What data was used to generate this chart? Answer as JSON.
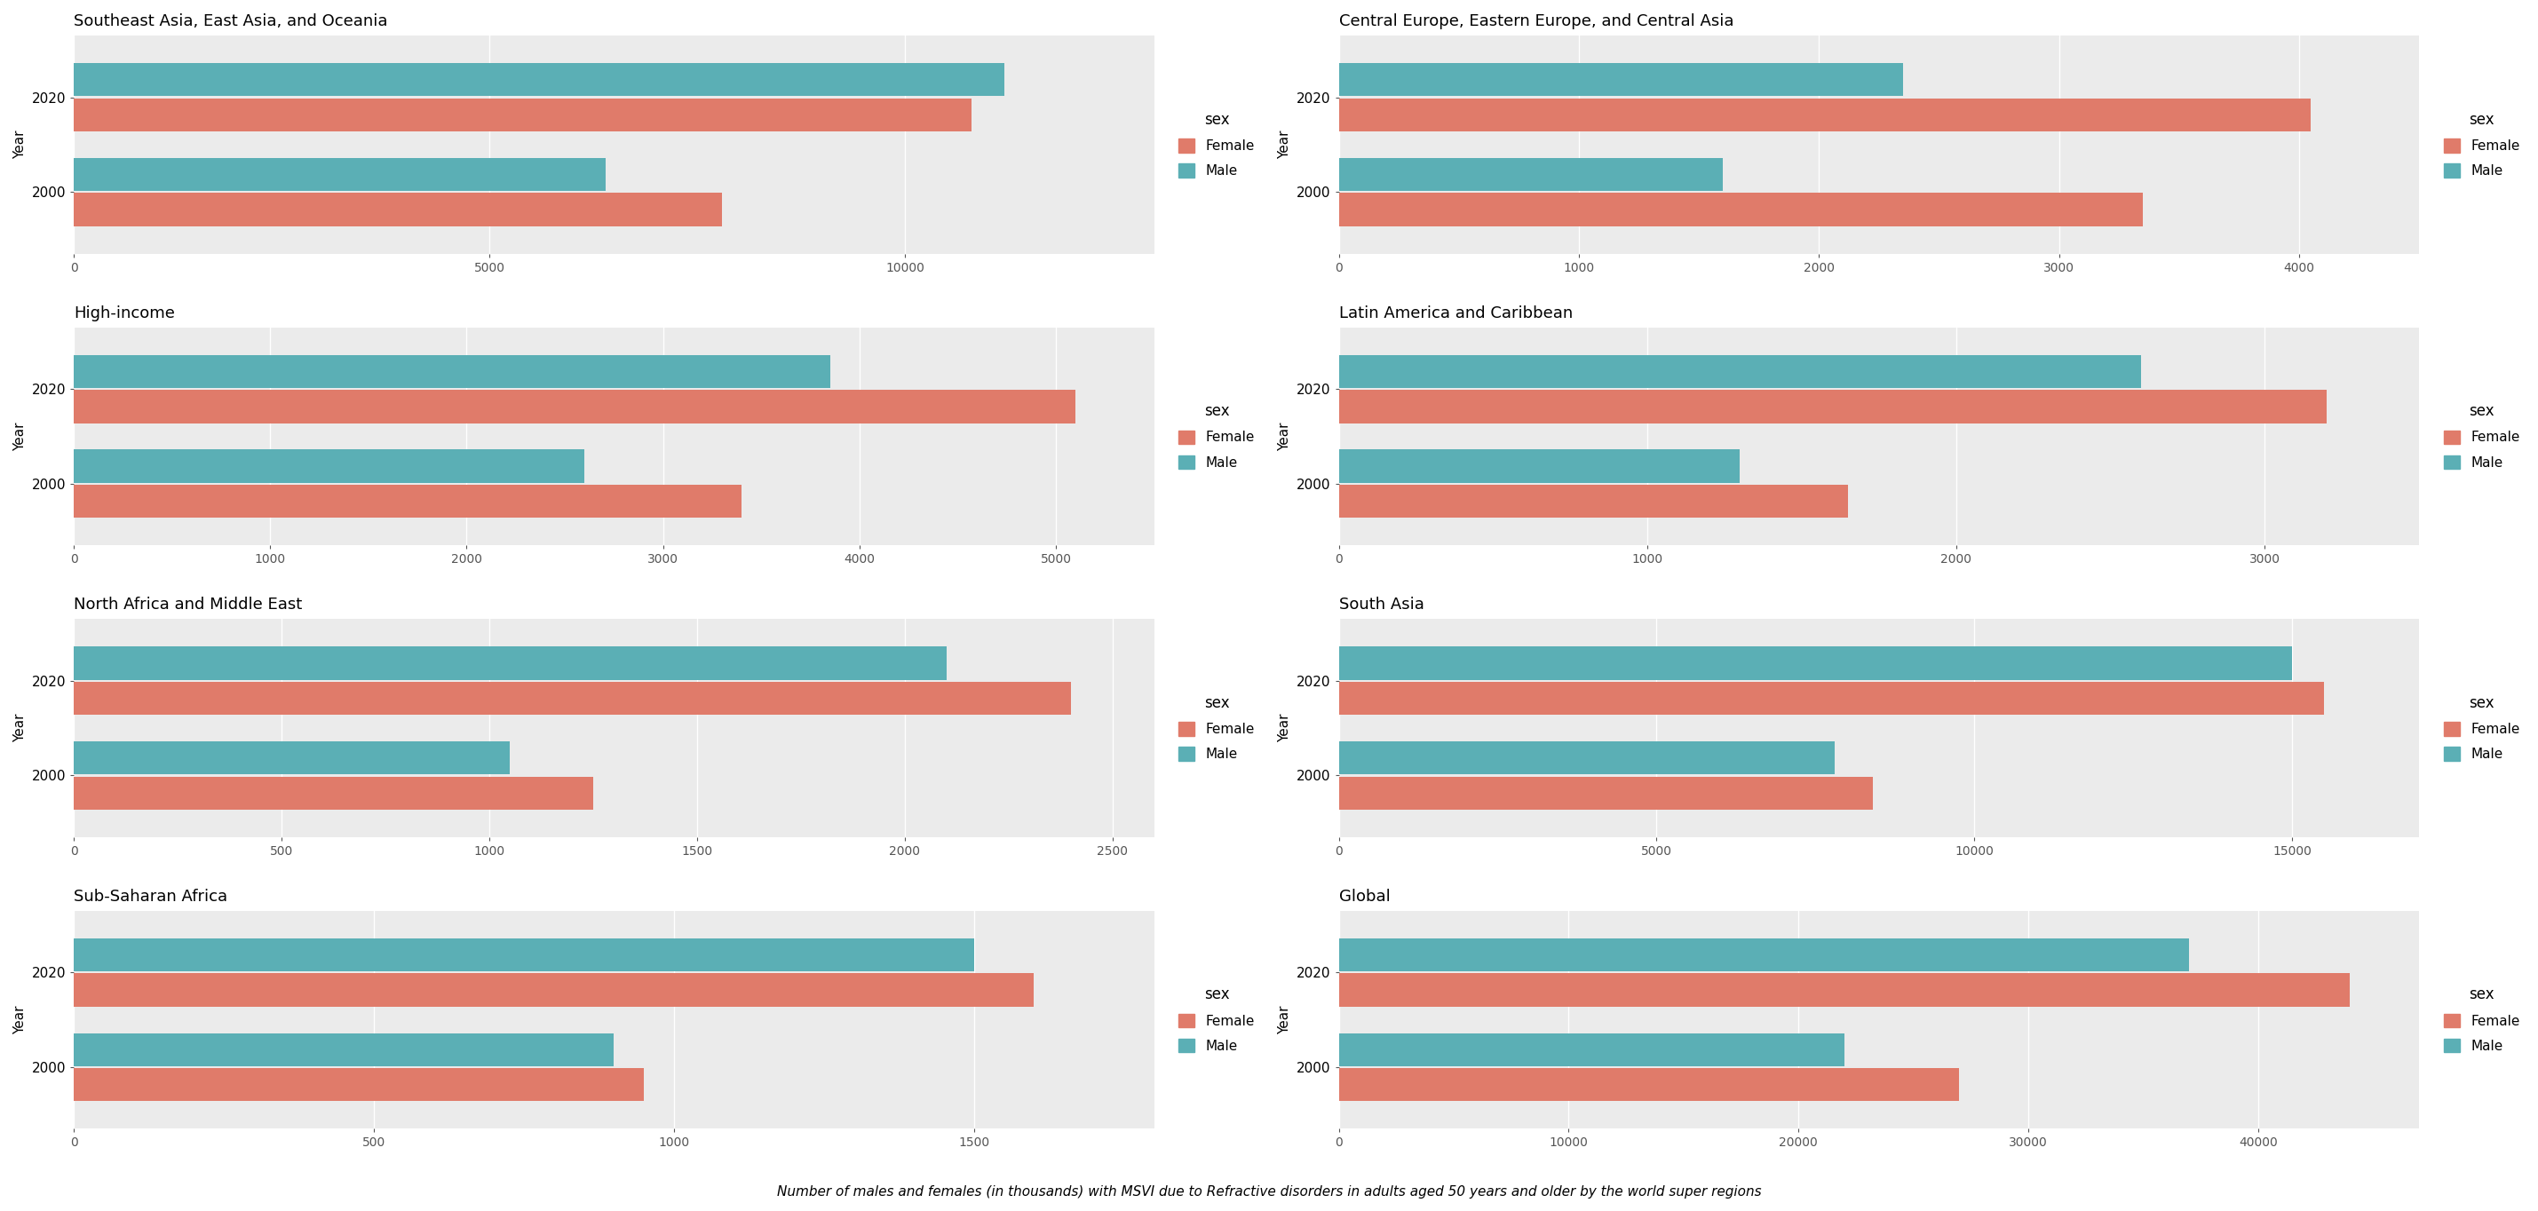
{
  "regions": [
    "Southeast Asia, East Asia, and Oceania",
    "Central Europe, Eastern Europe, and Central Asia",
    "High-income",
    "Latin America and Caribbean",
    "North Africa and Middle East",
    "South Asia",
    "Sub-Saharan Africa",
    "Global"
  ],
  "data": {
    "Southeast Asia, East Asia, and Oceania": {
      "2020": {
        "Female": 10800,
        "Male": 11200
      },
      "2000": {
        "Female": 7800,
        "Male": 6400
      }
    },
    "Central Europe, Eastern Europe, and Central Asia": {
      "2020": {
        "Female": 4050,
        "Male": 2350
      },
      "2000": {
        "Female": 3350,
        "Male": 1600
      }
    },
    "High-income": {
      "2020": {
        "Female": 5100,
        "Male": 3850
      },
      "2000": {
        "Female": 3400,
        "Male": 2600
      }
    },
    "Latin America and Caribbean": {
      "2020": {
        "Female": 3200,
        "Male": 2600
      },
      "2000": {
        "Female": 1650,
        "Male": 1300
      }
    },
    "North Africa and Middle East": {
      "2020": {
        "Female": 2400,
        "Male": 2100
      },
      "2000": {
        "Female": 1250,
        "Male": 1050
      }
    },
    "South Asia": {
      "2020": {
        "Female": 15500,
        "Male": 15000
      },
      "2000": {
        "Female": 8400,
        "Male": 7800
      }
    },
    "Sub-Saharan Africa": {
      "2020": {
        "Female": 1600,
        "Male": 1500
      },
      "2000": {
        "Female": 950,
        "Male": 900
      }
    },
    "Global": {
      "2020": {
        "Female": 44000,
        "Male": 37000
      },
      "2000": {
        "Female": 27000,
        "Male": 22000
      }
    }
  },
  "xlims": {
    "Southeast Asia, East Asia, and Oceania": [
      0,
      13000
    ],
    "Central Europe, Eastern Europe, and Central Asia": [
      0,
      4500
    ],
    "High-income": [
      0,
      5500
    ],
    "Latin America and Caribbean": [
      0,
      3500
    ],
    "North Africa and Middle East": [
      0,
      2600
    ],
    "South Asia": [
      0,
      17000
    ],
    "Sub-Saharan Africa": [
      0,
      1800
    ],
    "Global": [
      0,
      47000
    ]
  },
  "xticks": {
    "Southeast Asia, East Asia, and Oceania": [
      0,
      5000,
      10000
    ],
    "Central Europe, Eastern Europe, and Central Asia": [
      0,
      1000,
      2000,
      3000,
      4000
    ],
    "High-income": [
      0,
      1000,
      2000,
      3000,
      4000,
      5000
    ],
    "Latin America and Caribbean": [
      0,
      1000,
      2000,
      3000
    ],
    "North Africa and Middle East": [
      0,
      500,
      1000,
      1500,
      2000,
      2500
    ],
    "South Asia": [
      0,
      5000,
      10000,
      15000
    ],
    "Sub-Saharan Africa": [
      0,
      500,
      1000,
      1500
    ],
    "Global": [
      0,
      10000,
      20000,
      30000,
      40000
    ]
  },
  "female_color": "#e07b6a",
  "male_color": "#5bafb5",
  "background_color": "#ebebeb",
  "plot_bg_color": "#ebebeb",
  "outer_bg_color": "#ffffff",
  "bar_height": 0.35,
  "caption": "Number of males and females (in thousands) with MSVI due to Refractive disorders in adults aged 50 years and older by the world super regions"
}
